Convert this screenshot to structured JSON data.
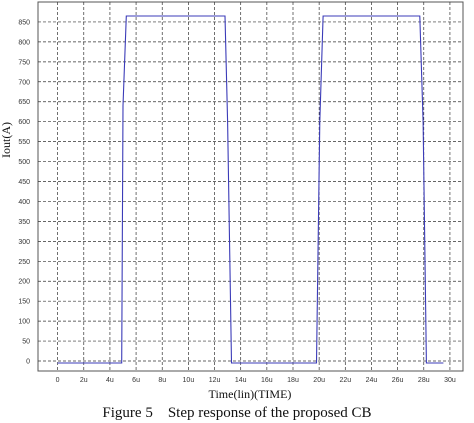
{
  "figure_caption": "Figure 5    Step response of the proposed CB",
  "chart_data": {
    "type": "line",
    "xlabel": "Time(lin)(TIME)",
    "ylabel": "Iout(A)",
    "x_tick_labels": [
      "0",
      "2u",
      "4u",
      "6u",
      "8u",
      "10u",
      "12u",
      "14u",
      "16u",
      "18u",
      "20u",
      "22u",
      "24u",
      "26u",
      "28u",
      "30u"
    ],
    "y_tick_labels": [
      "0",
      "50",
      "100",
      "150",
      "200",
      "250",
      "300",
      "350",
      "400",
      "450",
      "500",
      "550",
      "600",
      "650",
      "700",
      "750",
      "800",
      "850"
    ],
    "xlim": [
      -1.5,
      31
    ],
    "ylim": [
      -25,
      900
    ],
    "grid": true,
    "line_color": "#3b3bb8",
    "series": [
      {
        "x": [
          0,
          4.9,
          5.0,
          5.25,
          12.8,
          13.0,
          13.3,
          19.8,
          20.05,
          20.3,
          27.7,
          27.95,
          28.2,
          29.5
        ],
        "y": [
          -5,
          -5,
          640,
          865,
          865,
          600,
          -5,
          -5,
          600,
          865,
          865,
          600,
          -5,
          -5
        ]
      }
    ]
  }
}
